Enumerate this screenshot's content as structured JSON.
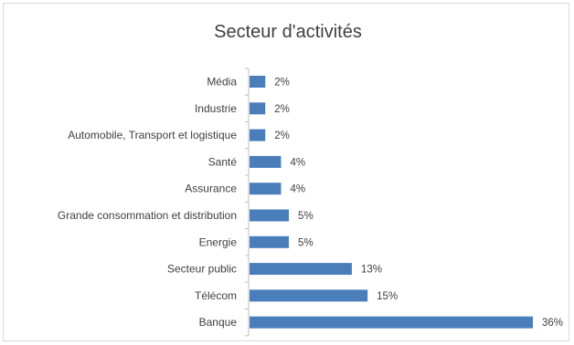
{
  "chart_data": {
    "type": "bar",
    "orientation": "horizontal",
    "title": "Secteur d'activités",
    "categories": [
      "Média",
      "Industrie",
      "Automobile, Transport et logistique",
      "Santé",
      "Assurance",
      "Grande consommation et distribution",
      "Energie",
      "Secteur public",
      "Télécom",
      "Banque"
    ],
    "values": [
      2,
      2,
      2,
      4,
      4,
      5,
      5,
      13,
      15,
      36
    ],
    "value_labels": [
      "2%",
      "2%",
      "2%",
      "4%",
      "4%",
      "5%",
      "5%",
      "13%",
      "15%",
      "36%"
    ],
    "unit": "%",
    "xlim": [
      0,
      36
    ],
    "grid": false,
    "legend": "none",
    "bar_color": "#4a7ebb"
  }
}
